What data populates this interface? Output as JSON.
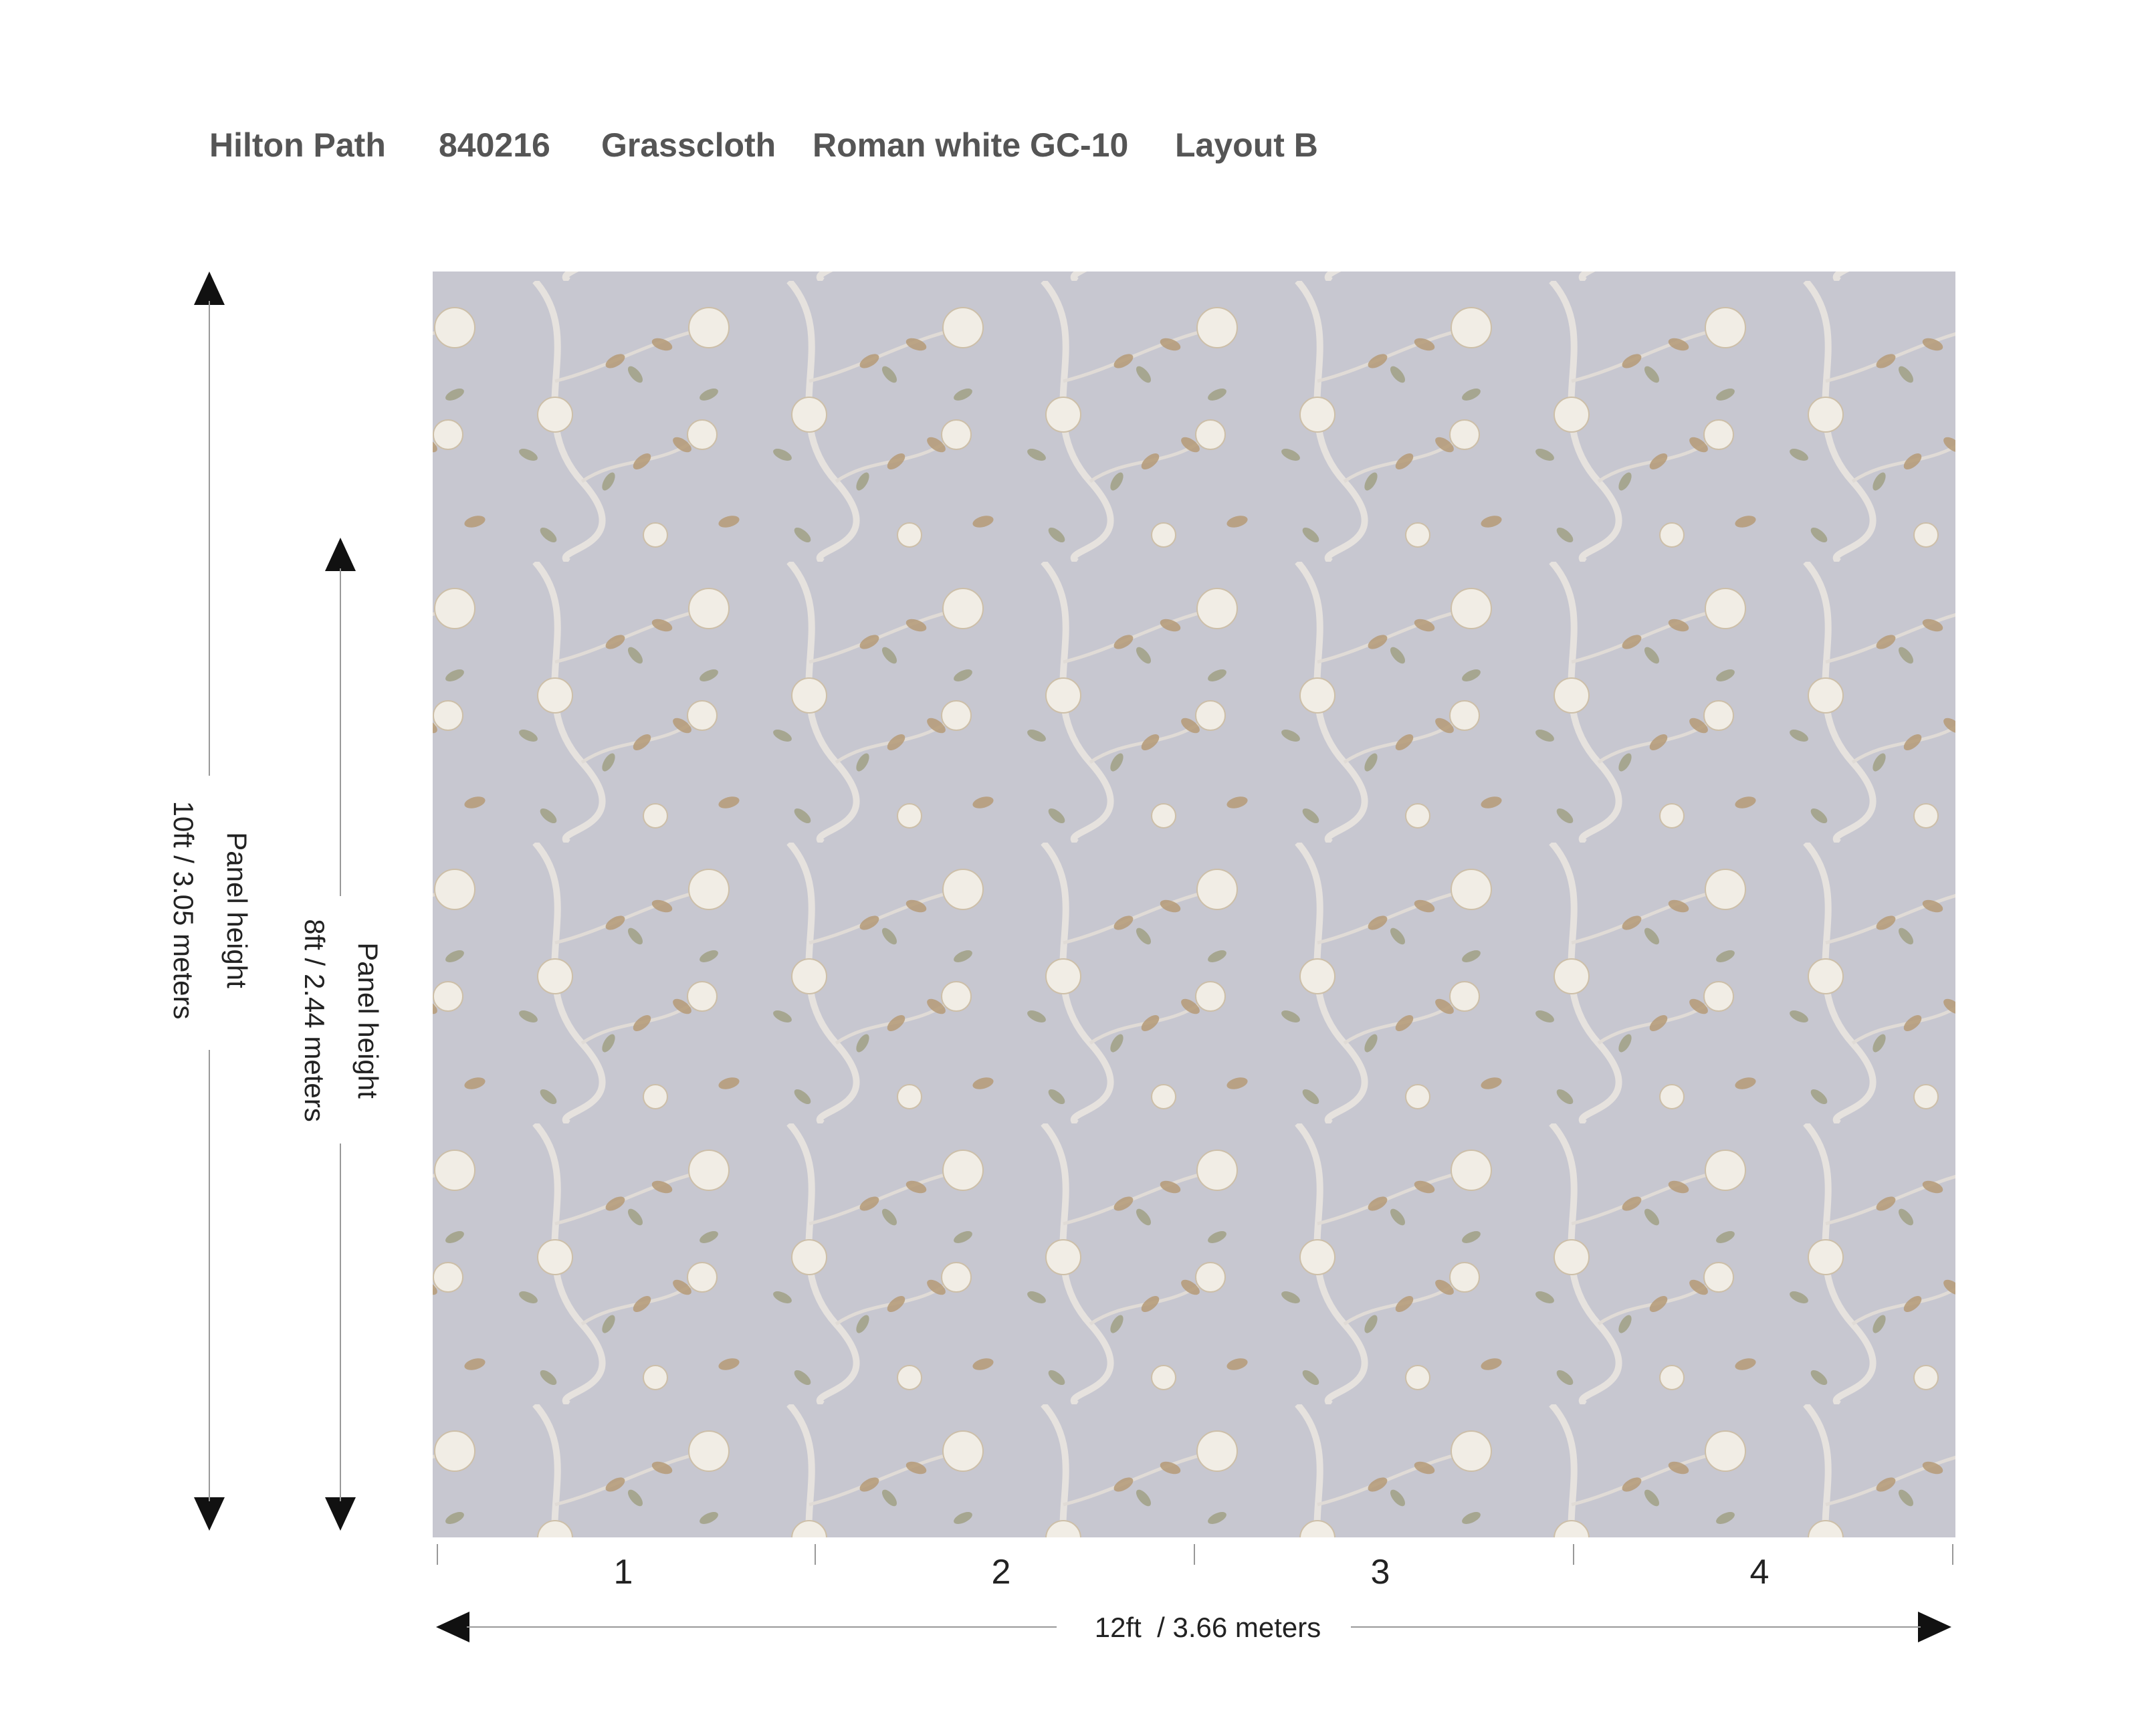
{
  "header": {
    "items": [
      "Hilton Path",
      "840216",
      "Grasscloth",
      "Roman white GC-10",
      "Layout B"
    ]
  },
  "dimensions": {
    "total_height": {
      "title": "Panel height",
      "value": "10ft / 3.05 meters"
    },
    "visible_height": {
      "title": "Panel height",
      "value": "8ft / 2.44 meters"
    },
    "width": "12ft  / 3.66 meters"
  },
  "panels": [
    "1",
    "2",
    "3",
    "4"
  ]
}
